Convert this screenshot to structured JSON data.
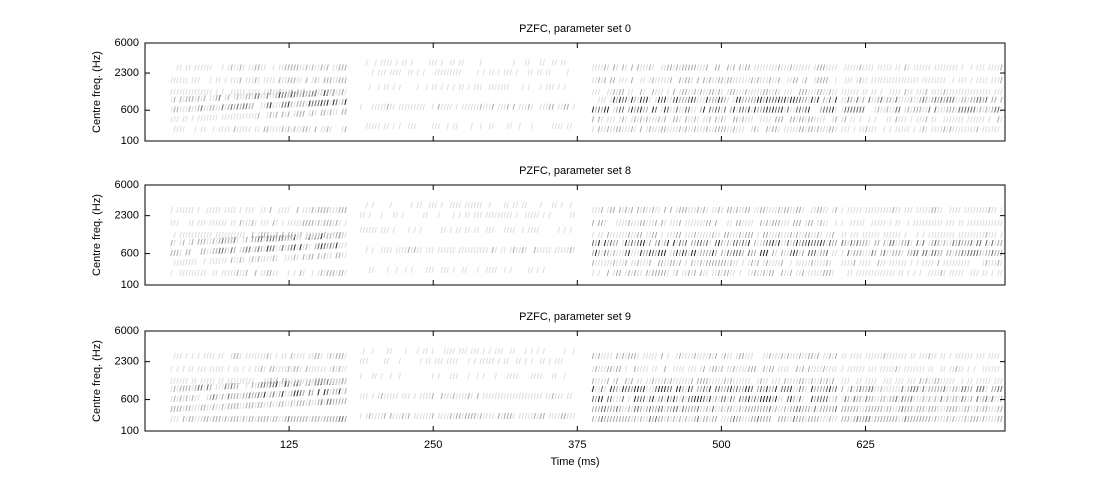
{
  "chart_data": [
    {
      "type": "spectrogram",
      "title": "PZFC, parameter set 0",
      "ylabel": "Centre freq. (Hz)",
      "yscale": "erb",
      "ylim": [
        100,
        6000
      ],
      "yticks": [
        100,
        600,
        2300,
        6000
      ],
      "xlim": [
        0,
        746
      ],
      "xticks": [
        125,
        250,
        375,
        500,
        625
      ]
    },
    {
      "type": "spectrogram",
      "title": "PZFC, parameter set 8",
      "ylabel": "Centre freq. (Hz)",
      "yscale": "erb",
      "ylim": [
        100,
        6000
      ],
      "yticks": [
        100,
        600,
        2300,
        6000
      ],
      "xlim": [
        0,
        746
      ],
      "xticks": [
        125,
        250,
        375,
        500,
        625
      ]
    },
    {
      "type": "spectrogram",
      "title": "PZFC, parameter set 9",
      "ylabel": "Centre freq. (Hz)",
      "yscale": "erb",
      "ylim": [
        100,
        6000
      ],
      "yticks": [
        100,
        600,
        2300,
        6000
      ],
      "xlim": [
        0,
        746
      ],
      "xticks": [
        125,
        250,
        375,
        500,
        625
      ],
      "xlabel": "Time (ms)"
    }
  ]
}
